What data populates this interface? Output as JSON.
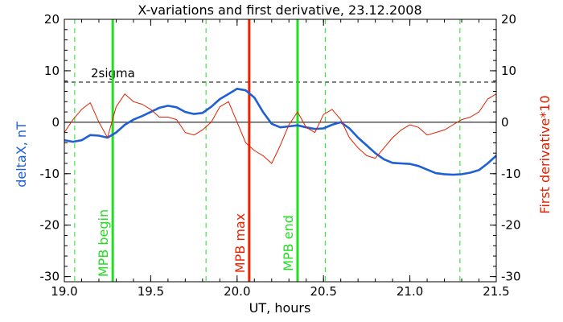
{
  "chart_data": {
    "type": "line",
    "title": "X-variations and first derivative, 23.12.2008",
    "xlabel": "UT, hours",
    "ylabel_left": "deltaX, nT",
    "ylabel_right": "First derivative*10",
    "xlim": [
      19.0,
      21.5
    ],
    "ylim_left": [
      -31,
      20
    ],
    "ylim_right": [
      -31,
      20
    ],
    "xticks": [
      "19.0",
      "19.5",
      "20.0",
      "20.5",
      "21.0",
      "21.5"
    ],
    "yticks": [
      "20",
      "10",
      "0",
      "-10",
      "-20",
      "-30"
    ],
    "grid": false,
    "colors": {
      "deltaX": "#1f5fd6",
      "derivative": "#e02000",
      "mpb_boundary": "#22dd22",
      "mpb_max": "#ee2200",
      "dashed_green": "#22dd22",
      "sigma": "#000000",
      "zero": "#000000"
    },
    "series": [
      {
        "name": "deltaX, nT",
        "axis": "left",
        "x": [
          19.0,
          19.05,
          19.1,
          19.15,
          19.2,
          19.25,
          19.3,
          19.35,
          19.4,
          19.45,
          19.5,
          19.55,
          19.6,
          19.65,
          19.7,
          19.75,
          19.8,
          19.85,
          19.9,
          19.95,
          20.0,
          20.05,
          20.1,
          20.15,
          20.2,
          20.25,
          20.3,
          20.35,
          20.4,
          20.45,
          20.5,
          20.55,
          20.6,
          20.65,
          20.7,
          20.75,
          20.8,
          20.85,
          20.9,
          20.95,
          21.0,
          21.05,
          21.1,
          21.15,
          21.2,
          21.25,
          21.3,
          21.35,
          21.4,
          21.45,
          21.5
        ],
        "values": [
          -3.5,
          -3.8,
          -3.5,
          -2.5,
          -2.6,
          -3.0,
          -2.0,
          -0.5,
          0.5,
          1.2,
          2.0,
          2.8,
          3.2,
          2.9,
          2.0,
          1.6,
          1.8,
          3.0,
          4.5,
          5.5,
          6.5,
          6.2,
          4.8,
          2.0,
          -0.3,
          -1.0,
          -0.8,
          -0.6,
          -1.0,
          -1.3,
          -1.2,
          -0.5,
          0.0,
          -1.2,
          -3.0,
          -4.5,
          -6.0,
          -7.2,
          -7.9,
          -8.0,
          -8.1,
          -8.5,
          -9.2,
          -9.9,
          -10.1,
          -10.2,
          -10.1,
          -9.8,
          -9.3,
          -8.0,
          -6.5
        ]
      },
      {
        "name": "First derivative*10",
        "axis": "right",
        "x": [
          19.0,
          19.05,
          19.1,
          19.15,
          19.2,
          19.25,
          19.3,
          19.35,
          19.4,
          19.45,
          19.5,
          19.55,
          19.6,
          19.65,
          19.7,
          19.75,
          19.8,
          19.85,
          19.9,
          19.95,
          20.0,
          20.05,
          20.1,
          20.15,
          20.2,
          20.25,
          20.3,
          20.35,
          20.4,
          20.45,
          20.5,
          20.55,
          20.6,
          20.65,
          20.7,
          20.75,
          20.8,
          20.85,
          20.9,
          20.95,
          21.0,
          21.05,
          21.1,
          21.15,
          21.2,
          21.25,
          21.3,
          21.35,
          21.4,
          21.45,
          21.5
        ],
        "values": [
          -2.0,
          0.5,
          2.5,
          3.8,
          0.0,
          -3.0,
          3.0,
          5.5,
          4.0,
          3.5,
          2.5,
          1.0,
          1.0,
          0.5,
          -2.0,
          -2.5,
          -1.5,
          0.0,
          3.0,
          4.0,
          0.0,
          -4.0,
          -5.5,
          -6.5,
          -8.0,
          -4.5,
          -0.5,
          2.0,
          -1.0,
          -2.0,
          1.5,
          2.5,
          0.5,
          -3.0,
          -5.0,
          -6.5,
          -7.0,
          -5.0,
          -3.0,
          -1.5,
          -0.5,
          -1.0,
          -2.5,
          -2.0,
          -1.5,
          -0.5,
          0.5,
          1.0,
          2.0,
          4.5,
          5.5
        ]
      }
    ],
    "reference_lines": [
      {
        "value": 7.8,
        "style": "dashed",
        "label": "2sigma"
      },
      {
        "value": 0,
        "style": "solid",
        "label": ""
      }
    ],
    "vertical_markers": [
      {
        "x": 19.06,
        "style": "dashed",
        "label": ""
      },
      {
        "x": 19.28,
        "style": "solid",
        "label": "MPB begin"
      },
      {
        "x": 19.82,
        "style": "dashed",
        "label": ""
      },
      {
        "x": 20.07,
        "style": "solid",
        "label": "MPB max"
      },
      {
        "x": 20.35,
        "style": "solid",
        "label": "MPB end"
      },
      {
        "x": 20.51,
        "style": "dashed",
        "label": ""
      },
      {
        "x": 21.29,
        "style": "dashed",
        "label": ""
      }
    ]
  }
}
